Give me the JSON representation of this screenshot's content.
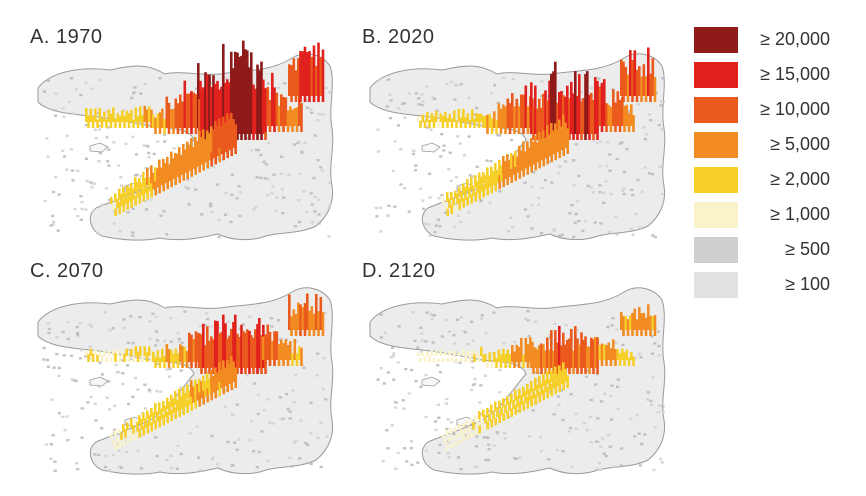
{
  "panels": [
    {
      "title": "A. 1970",
      "scenario": "1970"
    },
    {
      "title": "B. 2020",
      "scenario": "2020"
    },
    {
      "title": "C. 2070",
      "scenario": "2070"
    },
    {
      "title": "D. 2120",
      "scenario": "2120"
    }
  ],
  "legend": [
    {
      "label": "≥ 20,000",
      "color": "#8e1a1a"
    },
    {
      "label": "≥ 15,000",
      "color": "#e0211d"
    },
    {
      "label": "≥ 10,000",
      "color": "#ea5a1c"
    },
    {
      "label": "≥ 5,000",
      "color": "#f28b22"
    },
    {
      "label": "≥ 2,000",
      "color": "#f6cf2a"
    },
    {
      "label": "≥ 1,000",
      "color": "#faf2c8"
    },
    {
      "label": "≥ 500",
      "color": "#cfcfcf"
    },
    {
      "label": "≥ 100",
      "color": "#e2e2e2"
    }
  ],
  "colors": {
    "outline": "#9a9a9a",
    "base_grey": "#d3d3d3"
  }
}
